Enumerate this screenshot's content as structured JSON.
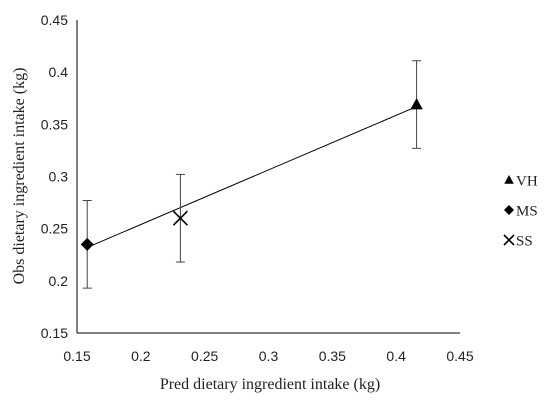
{
  "chart_data": {
    "type": "scatter",
    "title": "",
    "xlabel": "Pred dietary ingredient intake (kg)",
    "ylabel": "Obs dietary ingredient intake (kg)",
    "xlim": [
      0.15,
      0.45
    ],
    "ylim": [
      0.15,
      0.45
    ],
    "xticks": [
      "0.15",
      "0.2",
      "0.25",
      "0.3",
      "0.35",
      "0.4",
      "0.45"
    ],
    "yticks": [
      "0.15",
      "0.2",
      "0.25",
      "0.3",
      "0.35",
      "0.4",
      "0.45"
    ],
    "grid": false,
    "legend_position": "right",
    "series": [
      {
        "name": "VH",
        "marker": "triangle",
        "x": 0.416,
        "y": 0.369,
        "error": 0.042
      },
      {
        "name": "MS",
        "marker": "diamond",
        "x": 0.158,
        "y": 0.235,
        "error": 0.042
      },
      {
        "name": "SS",
        "marker": "x",
        "x": 0.231,
        "y": 0.26,
        "error": 0.042
      }
    ],
    "trendline": {
      "x": [
        0.158,
        0.416
      ],
      "y": [
        0.232,
        0.367
      ]
    },
    "colors": {
      "marker": "#000000",
      "line": "#000000",
      "errorbar": "#444444",
      "axis": "#000000"
    }
  }
}
